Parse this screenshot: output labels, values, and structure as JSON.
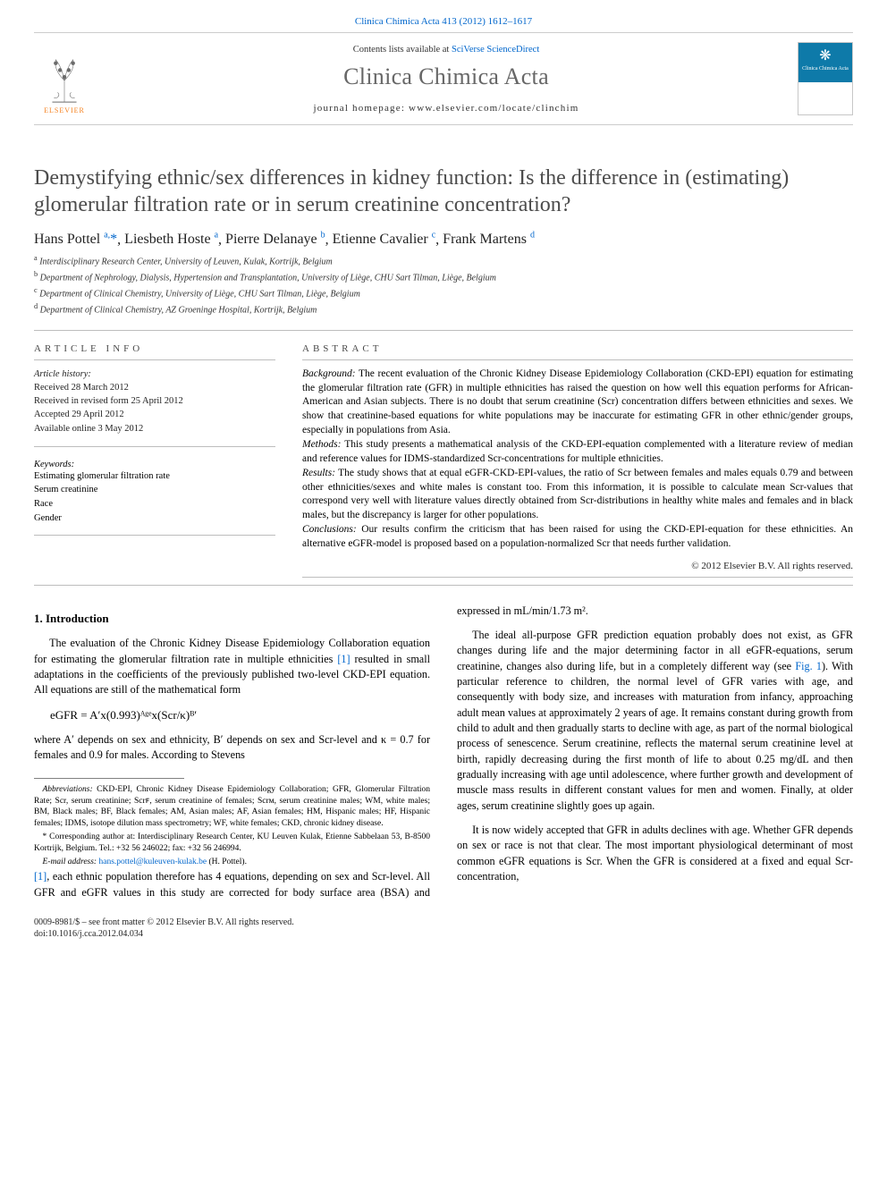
{
  "header": {
    "citation": "Clinica Chimica Acta 413 (2012) 1612–1617",
    "contents_prefix": "Contents lists available at ",
    "contents_linktext": "SciVerse ScienceDirect",
    "journal_name": "Clinica Chimica Acta",
    "homepage_prefix": "journal homepage: ",
    "homepage_url": "www.elsevier.com/locate/clinchim",
    "publisher_label": "ELSEVIER",
    "cover_lines": "Clinica\nChimica\nActa"
  },
  "title": "Demystifying ethnic/sex differences in kidney function: Is the difference in (estimating) glomerular filtration rate or in serum creatinine concentration?",
  "authors": [
    {
      "name": "Hans Pottel",
      "affil": "a",
      "corr": true
    },
    {
      "name": "Liesbeth Hoste",
      "affil": "a",
      "corr": false
    },
    {
      "name": "Pierre Delanaye",
      "affil": "b",
      "corr": false
    },
    {
      "name": "Etienne Cavalier",
      "affil": "c",
      "corr": false
    },
    {
      "name": "Frank Martens",
      "affil": "d",
      "corr": false
    }
  ],
  "affiliations": [
    {
      "key": "a",
      "text": "Interdisciplinary Research Center, University of Leuven, Kulak, Kortrijk, Belgium"
    },
    {
      "key": "b",
      "text": "Department of Nephrology, Dialysis, Hypertension and Transplantation, University of Liège, CHU Sart Tilman, Liège, Belgium"
    },
    {
      "key": "c",
      "text": "Department of Clinical Chemistry, University of Liège, CHU Sart Tilman, Liège, Belgium"
    },
    {
      "key": "d",
      "text": "Department of Clinical Chemistry, AZ Groeninge Hospital, Kortrijk, Belgium"
    }
  ],
  "article_info": {
    "heading": "article info",
    "history_label": "Article history:",
    "history": [
      "Received 28 March 2012",
      "Received in revised form 25 April 2012",
      "Accepted 29 April 2012",
      "Available online 3 May 2012"
    ],
    "keywords_label": "Keywords:",
    "keywords": [
      "Estimating glomerular filtration rate",
      "Serum creatinine",
      "Race",
      "Gender"
    ]
  },
  "abstract": {
    "heading": "abstract",
    "sections": {
      "background_label": "Background:",
      "background": "The recent evaluation of the Chronic Kidney Disease Epidemiology Collaboration (CKD-EPI) equation for estimating the glomerular filtration rate (GFR) in multiple ethnicities has raised the question on how well this equation performs for African-American and Asian subjects. There is no doubt that serum creatinine (Scr) concentration differs between ethnicities and sexes. We show that creatinine-based equations for white populations may be inaccurate for estimating GFR in other ethnic/gender groups, especially in populations from Asia.",
      "methods_label": "Methods:",
      "methods": "This study presents a mathematical analysis of the CKD-EPI-equation complemented with a literature review of median and reference values for IDMS-standardized Scr-concentrations for multiple ethnicities.",
      "results_label": "Results:",
      "results": "The study shows that at equal eGFR-CKD-EPI-values, the ratio of Scr between females and males equals 0.79 and between other ethnicities/sexes and white males is constant too. From this information, it is possible to calculate mean Scr-values that correspond very well with literature values directly obtained from Scr-distributions in healthy white males and females and in black males, but the discrepancy is larger for other populations.",
      "conclusions_label": "Conclusions:",
      "conclusions": "Our results confirm the criticism that has been raised for using the CKD-EPI-equation for these ethnicities. An alternative eGFR-model is proposed based on a population-normalized Scr that needs further validation."
    },
    "copyright": "© 2012 Elsevier B.V. All rights reserved."
  },
  "body": {
    "intro_heading": "1. Introduction",
    "p1": "The evaluation of the Chronic Kidney Disease Epidemiology Collaboration equation for estimating the glomerular filtration rate in multiple ethnicities [1] resulted in small adaptations in the coefficients of the previously published two-level CKD-EPI equation. All equations are still of the mathematical form",
    "formula": "eGFR = A′x(0.993)ᴬᵍᵉx(Scr/κ)ᴮ′",
    "p2": "where A′ depends on sex and ethnicity, B′ depends on sex and Scr-level and κ = 0.7 for females and 0.9 for males. According to Stevens",
    "p3": "[1], each ethnic population therefore has 4 equations, depending on sex and Scr-level. All GFR and eGFR values in this study are corrected for body surface area (BSA) and expressed in mL/min/1.73 m².",
    "p4": "The ideal all-purpose GFR prediction equation probably does not exist, as GFR changes during life and the major determining factor in all eGFR-equations, serum creatinine, changes also during life, but in a completely different way (see Fig. 1). With particular reference to children, the normal level of GFR varies with age, and consequently with body size, and increases with maturation from infancy, approaching adult mean values at approximately 2 years of age. It remains constant during growth from child to adult and then gradually starts to decline with age, as part of the normal biological process of senescence. Serum creatinine, reflects the maternal serum creatinine level at birth, rapidly decreasing during the first month of life to about 0.25 mg/dL and then gradually increasing with age until adolescence, where further growth and development of muscle mass results in different constant values for men and women. Finally, at older ages, serum creatinine slightly goes up again.",
    "p5": "It is now widely accepted that GFR in adults declines with age. Whether GFR depends on sex or race is not that clear. The most important physiological determinant of most common eGFR equations is Scr. When the GFR is considered at a fixed and equal Scr-concentration,"
  },
  "footnotes": {
    "abbrev_label": "Abbreviations:",
    "abbrev": "CKD-EPI, Chronic Kidney Disease Epidemiology Collaboration; GFR, Glomerular Filtration Rate; Scr, serum creatinine; Scrꜰ, serum creatinine of females; Scrᴍ, serum creatinine males; WM, white males; BM, Black males; BF, Black females; AM, Asian males; AF, Asian females; HM, Hispanic males; HF, Hispanic females; IDMS, isotope dilution mass spectrometry; WF, white females; CKD, chronic kidney disease.",
    "corr_label": "* Corresponding author at:",
    "corr": "Interdisciplinary Research Center, KU Leuven Kulak, Etienne Sabbelaan 53, B-8500 Kortrijk, Belgium. Tel.: +32 56 246022; fax: +32 56 246994.",
    "email_label": "E-mail address:",
    "email": "hans.pottel@kuleuven-kulak.be",
    "email_who": "(H. Pottel)."
  },
  "footer": {
    "line1": "0009-8981/$ – see front matter © 2012 Elsevier B.V. All rights reserved.",
    "line2": "doi:10.1016/j.cca.2012.04.034"
  },
  "colors": {
    "link": "#0066cc",
    "orange": "#f58220",
    "gray_title": "#4c4c4c",
    "rule": "#bdbdbd",
    "cover_blue": "#0e7aa9"
  }
}
